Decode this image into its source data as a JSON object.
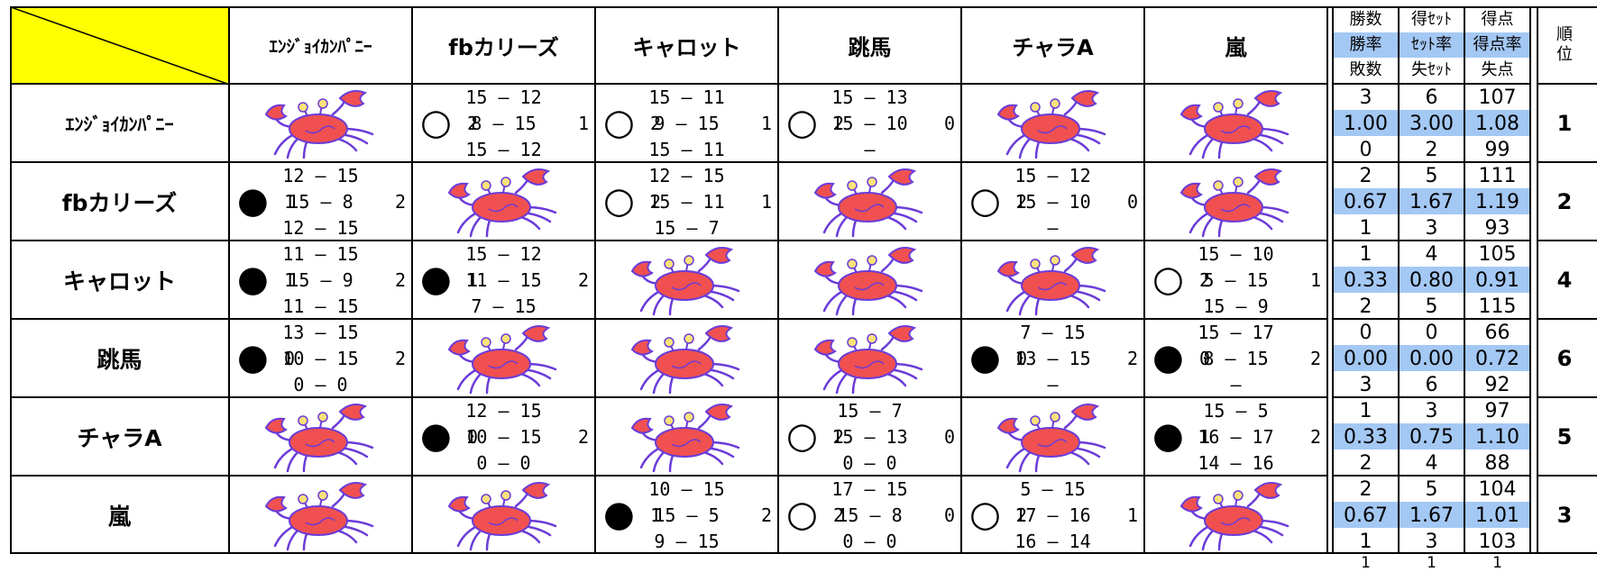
{
  "header": {
    "teams": [
      "ｴﾝｼﾞｮｲｶﾝﾊﾟﾆｰ",
      "fbカリーズ",
      "キャロット",
      "跳馬",
      "チャラA",
      "嵐"
    ],
    "stats_headers": [
      [
        "勝数",
        "得ｾｯﾄ",
        "得点"
      ],
      [
        "勝率",
        "ｾｯﾄ率",
        "得点率"
      ],
      [
        "敗数",
        "失ｾｯﾄ",
        "失点"
      ]
    ],
    "rank_header": "順位"
  },
  "rows": [
    {
      "team": "ｴﾝｼﾞｮｲｶﾝﾊﾟﾆｰ",
      "matches": [
        null,
        {
          "mark": "○",
          "won": "2",
          "scores": [
            "15 — 12",
            "8 — 15",
            "15 — 12"
          ],
          "lost": "1"
        },
        {
          "mark": "○",
          "won": "2",
          "scores": [
            "15 — 11",
            "9 — 15",
            "15 — 11"
          ],
          "lost": "1"
        },
        {
          "mark": "○",
          "won": "2",
          "scores": [
            "15 — 13",
            "15 — 10",
            "—"
          ],
          "lost": "0"
        },
        null,
        null
      ],
      "stats": [
        [
          "3",
          "6",
          "107"
        ],
        [
          "1.00",
          "3.00",
          "1.08"
        ],
        [
          "0",
          "2",
          "99"
        ]
      ],
      "rank": "1"
    },
    {
      "team": "fbカリーズ",
      "matches": [
        {
          "mark": "●",
          "won": "1",
          "scores": [
            "12 — 15",
            "15 — 8",
            "12 — 15"
          ],
          "lost": "2"
        },
        null,
        {
          "mark": "○",
          "won": "2",
          "scores": [
            "12 — 15",
            "15 — 11",
            "15 — 7"
          ],
          "lost": "1"
        },
        null,
        {
          "mark": "○",
          "won": "2",
          "scores": [
            "15 — 12",
            "15 — 10",
            "—"
          ],
          "lost": "0"
        },
        null
      ],
      "stats": [
        [
          "2",
          "5",
          "111"
        ],
        [
          "0.67",
          "1.67",
          "1.19"
        ],
        [
          "1",
          "3",
          "93"
        ]
      ],
      "rank": "2"
    },
    {
      "team": "キャロット",
      "matches": [
        {
          "mark": "●",
          "won": "1",
          "scores": [
            "11 — 15",
            "15 — 9",
            "11 — 15"
          ],
          "lost": "2"
        },
        {
          "mark": "●",
          "won": "1",
          "scores": [
            "15 — 12",
            "11 — 15",
            "7 — 15"
          ],
          "lost": "2"
        },
        null,
        null,
        null,
        {
          "mark": "○",
          "won": "2",
          "scores": [
            "15 — 10",
            "5 — 15",
            "15 — 9"
          ],
          "lost": "1"
        }
      ],
      "stats": [
        [
          "1",
          "4",
          "105"
        ],
        [
          "0.33",
          "0.80",
          "0.91"
        ],
        [
          "2",
          "5",
          "115"
        ]
      ],
      "rank": "4"
    },
    {
      "team": "跳馬",
      "matches": [
        {
          "mark": "●",
          "won": "0",
          "scores": [
            "13 — 15",
            "10 — 15",
            "0 — 0"
          ],
          "lost": "2"
        },
        null,
        null,
        null,
        {
          "mark": "●",
          "won": "0",
          "scores": [
            "7 — 15",
            "13 — 15",
            "—"
          ],
          "lost": "2"
        },
        {
          "mark": "●",
          "won": "0",
          "scores": [
            "15 — 17",
            "8 — 15",
            "—"
          ],
          "lost": "2"
        }
      ],
      "stats": [
        [
          "0",
          "0",
          "66"
        ],
        [
          "0.00",
          "0.00",
          "0.72"
        ],
        [
          "3",
          "6",
          "92"
        ]
      ],
      "rank": "6"
    },
    {
      "team": "チャラA",
      "matches": [
        null,
        {
          "mark": "●",
          "won": "0",
          "scores": [
            "12 — 15",
            "10 — 15",
            "0 — 0"
          ],
          "lost": "2"
        },
        null,
        {
          "mark": "○",
          "won": "2",
          "scores": [
            "15 — 7",
            "15 — 13",
            "0 — 0"
          ],
          "lost": "0"
        },
        null,
        {
          "mark": "●",
          "won": "1",
          "scores": [
            "15 — 5",
            "16 — 17",
            "14 — 16"
          ],
          "lost": "2"
        }
      ],
      "stats": [
        [
          "1",
          "3",
          "97"
        ],
        [
          "0.33",
          "0.75",
          "1.10"
        ],
        [
          "2",
          "4",
          "88"
        ]
      ],
      "rank": "5"
    },
    {
      "team": "嵐",
      "matches": [
        null,
        null,
        {
          "mark": "●",
          "won": "1",
          "scores": [
            "10 — 15",
            "15 — 5",
            "9 — 15"
          ],
          "lost": "2"
        },
        {
          "mark": "○",
          "won": "2",
          "scores": [
            "17 — 15",
            "15 — 8",
            "0 — 0"
          ],
          "lost": "0"
        },
        {
          "mark": "○",
          "won": "2",
          "scores": [
            "5 — 15",
            "17 — 16",
            "16 — 14"
          ],
          "lost": "1"
        },
        null
      ],
      "stats": [
        [
          "2",
          "5",
          "104"
        ],
        [
          "0.67",
          "1.67",
          "1.01"
        ],
        [
          "1",
          "3",
          "103"
        ]
      ],
      "rank": "3"
    }
  ],
  "footer": [
    "1",
    "1",
    "1"
  ]
}
